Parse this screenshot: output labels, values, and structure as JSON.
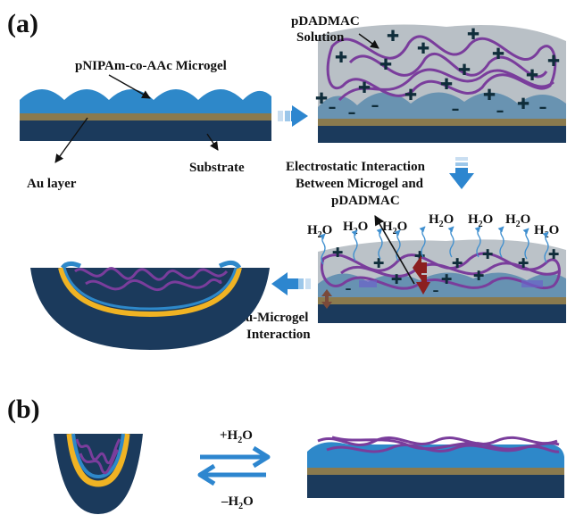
{
  "panel_a": {
    "label": "(a)",
    "microgel_label": "pNIPAm-co-AAc Microgel",
    "au_label": "Au layer",
    "substrate_label": "Substrate",
    "pdadmac_label_1": "pDADMAC",
    "pdadmac_label_2": "Solution",
    "electrostatic_1": "Electrostatic Interaction",
    "electrostatic_2": "Between Microgel and",
    "electrostatic_3": "pDADMAC",
    "au_microgel_1": "Au-Microgel",
    "au_microgel_2": "Interaction",
    "water_molecules": [
      {
        "h": "H",
        "sub": "2",
        "o": "O"
      },
      {
        "h": "H",
        "sub": "2",
        "o": "O"
      },
      {
        "h": "H",
        "sub": "2",
        "o": "O"
      },
      {
        "h": "H",
        "sub": "2",
        "o": "O"
      },
      {
        "h": "H",
        "sub": "2",
        "o": "O"
      },
      {
        "h": "H",
        "sub": "2",
        "o": "O"
      },
      {
        "h": "H",
        "sub": "2",
        "o": "O"
      }
    ]
  },
  "panel_b": {
    "label": "(b)",
    "add_water": {
      "pre": "+H",
      "sub": "2",
      "post": "O"
    },
    "remove_water": {
      "pre": "–H",
      "sub": "2",
      "post": "O"
    }
  },
  "symbols": {
    "plus": "✚",
    "minus": "–"
  },
  "colors": {
    "substrate": "#1b3a5c",
    "au": "#8a7a4e",
    "microgel": "#2e88c9",
    "solution": "#8e9aa3",
    "polymer": "#7a3d9c",
    "gold_rim": "#f0b323",
    "arrow": "#2d86cf",
    "interaction_red": "#8b1f1f",
    "interaction_brown": "#7a4a3a"
  }
}
